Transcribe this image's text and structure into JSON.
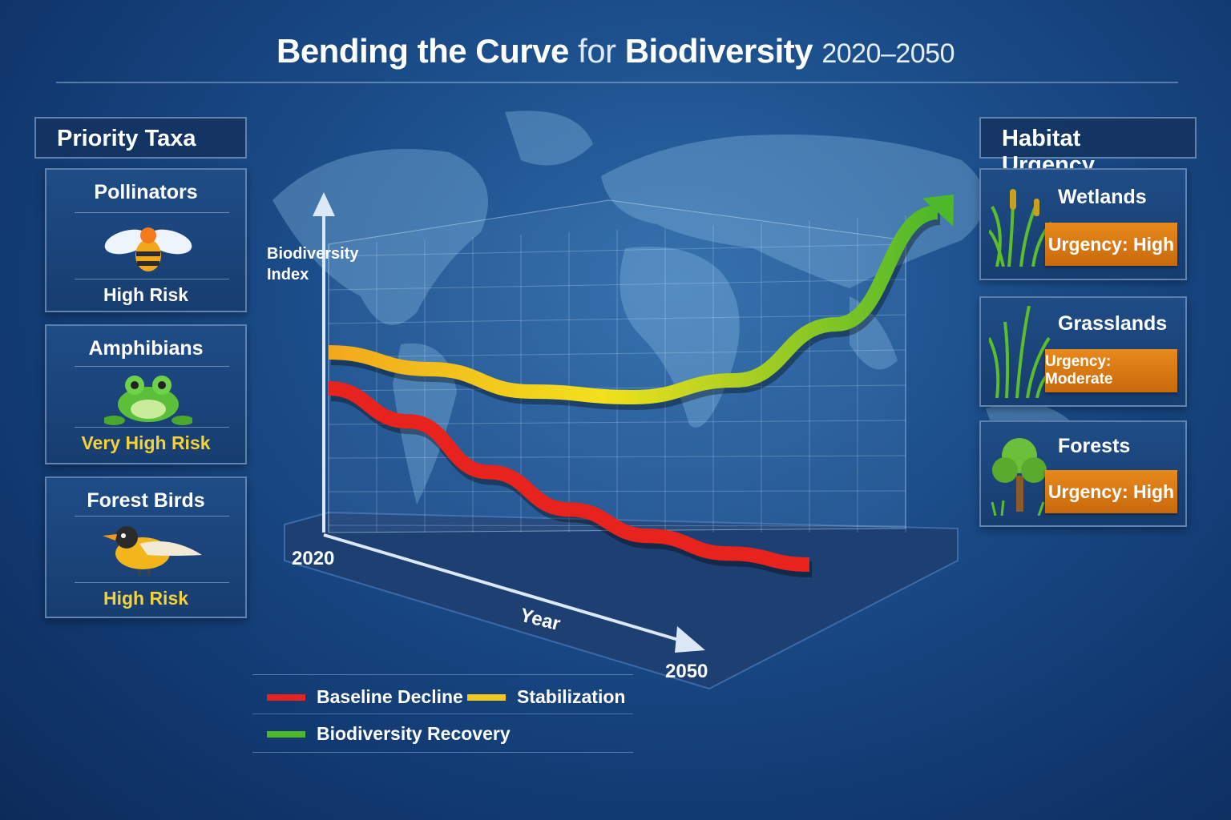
{
  "title": {
    "bold1": "Bending the Curve",
    "light": "for",
    "bold2": "Biodiversity",
    "years": "2020–2050"
  },
  "left_panel": {
    "heading": "Priority Taxa",
    "cards": [
      {
        "name": "Pollinators",
        "icon": "bee-icon",
        "risk": "High Risk",
        "risk_color": "#ffffff"
      },
      {
        "name": "Amphibians",
        "icon": "frog-icon",
        "risk": "Very High Risk",
        "risk_color": "#f4d23a"
      },
      {
        "name": "Forest Birds",
        "icon": "bird-icon",
        "risk": "High Risk",
        "risk_color": "#f4d23a"
      }
    ]
  },
  "right_panel": {
    "heading": "Habitat Urgency",
    "cards": [
      {
        "name": "Wetlands",
        "icon": "reeds-icon",
        "urgency": "Urgency: High"
      },
      {
        "name": "Grasslands",
        "icon": "grass-icon",
        "urgency": "Urgency: Moderate"
      },
      {
        "name": "Forests",
        "icon": "tree-icon",
        "urgency": "Urgency: High"
      }
    ]
  },
  "chart_data": {
    "type": "line",
    "title": "Bending the Curve for Biodiversity 2020–2050",
    "xlabel": "Year",
    "ylabel": "Biodiversity Index",
    "x_tick_labels": [
      "2020",
      "2050"
    ],
    "x": [
      2020,
      2025,
      2030,
      2035,
      2040,
      2045,
      2050
    ],
    "xlim": [
      2020,
      2050
    ],
    "ylim": [
      0,
      160
    ],
    "series": [
      {
        "name": "Baseline Decline",
        "color": "#e8231e",
        "values": [
          100,
          85,
          62,
          45,
          33,
          25,
          20
        ]
      },
      {
        "name": "Stabilization / Biodiversity Recovery",
        "color": "#f2c81c",
        "color_end": "#4cb82a",
        "values": [
          100,
          94,
          86,
          84,
          90,
          110,
          150
        ]
      }
    ],
    "legend": [
      {
        "label": "Baseline Decline",
        "color": "#e8231e"
      },
      {
        "label": "Stabilization",
        "color": "#f2c81c"
      },
      {
        "label": "Biodiversity Recovery",
        "color": "#4cb82a"
      }
    ],
    "legend_position": "bottom-left",
    "grid": true
  }
}
